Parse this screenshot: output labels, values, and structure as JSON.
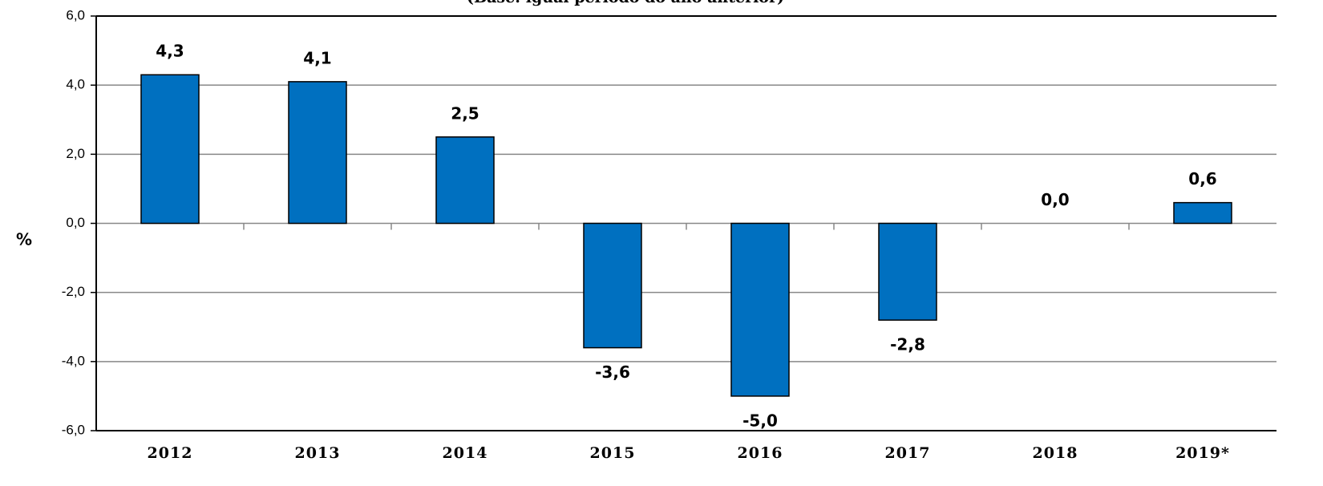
{
  "chart_data": {
    "type": "bar",
    "subtitle": "(Base: igual período do ano anterior)",
    "y_label": "%",
    "categories": [
      "2012",
      "2013",
      "2014",
      "2015",
      "2016",
      "2017",
      "2018",
      "2019*"
    ],
    "values": [
      4.3,
      4.1,
      2.5,
      -3.6,
      -5.0,
      -2.8,
      0.0,
      0.6
    ],
    "value_labels": [
      "4,3",
      "4,1",
      "2,5",
      "-3,6",
      "-5,0",
      "-2,8",
      "0,0",
      "0,6"
    ],
    "color": "#0070c0",
    "ylim": [
      -6,
      6
    ],
    "yticks": [
      {
        "value": -6,
        "label": "-6,0"
      },
      {
        "value": -4,
        "label": "-4,0"
      },
      {
        "value": -2,
        "label": "-2,0"
      },
      {
        "value": 0,
        "label": "0,0"
      },
      {
        "value": 2,
        "label": "2,0"
      },
      {
        "value": 4,
        "label": "4,0"
      },
      {
        "value": 6,
        "label": "6,0"
      }
    ],
    "grid": true
  }
}
